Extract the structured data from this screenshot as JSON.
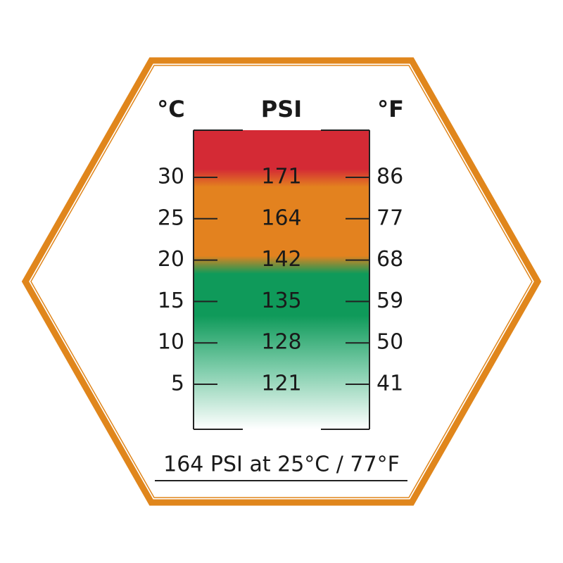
{
  "header": {
    "celsius": "°C",
    "psi": "PSI",
    "fahrenheit": "°F"
  },
  "rows": [
    {
      "celsius": "30",
      "psi": "171",
      "fahrenheit": "86"
    },
    {
      "celsius": "25",
      "psi": "164",
      "fahrenheit": "77"
    },
    {
      "celsius": "20",
      "psi": "142",
      "fahrenheit": "68"
    },
    {
      "celsius": "15",
      "psi": "135",
      "fahrenheit": "59"
    },
    {
      "celsius": "10",
      "psi": "128",
      "fahrenheit": "50"
    },
    {
      "celsius": "5",
      "psi": "121",
      "fahrenheit": "41"
    }
  ],
  "footer": "164 PSI at 25°C / 77°F"
}
